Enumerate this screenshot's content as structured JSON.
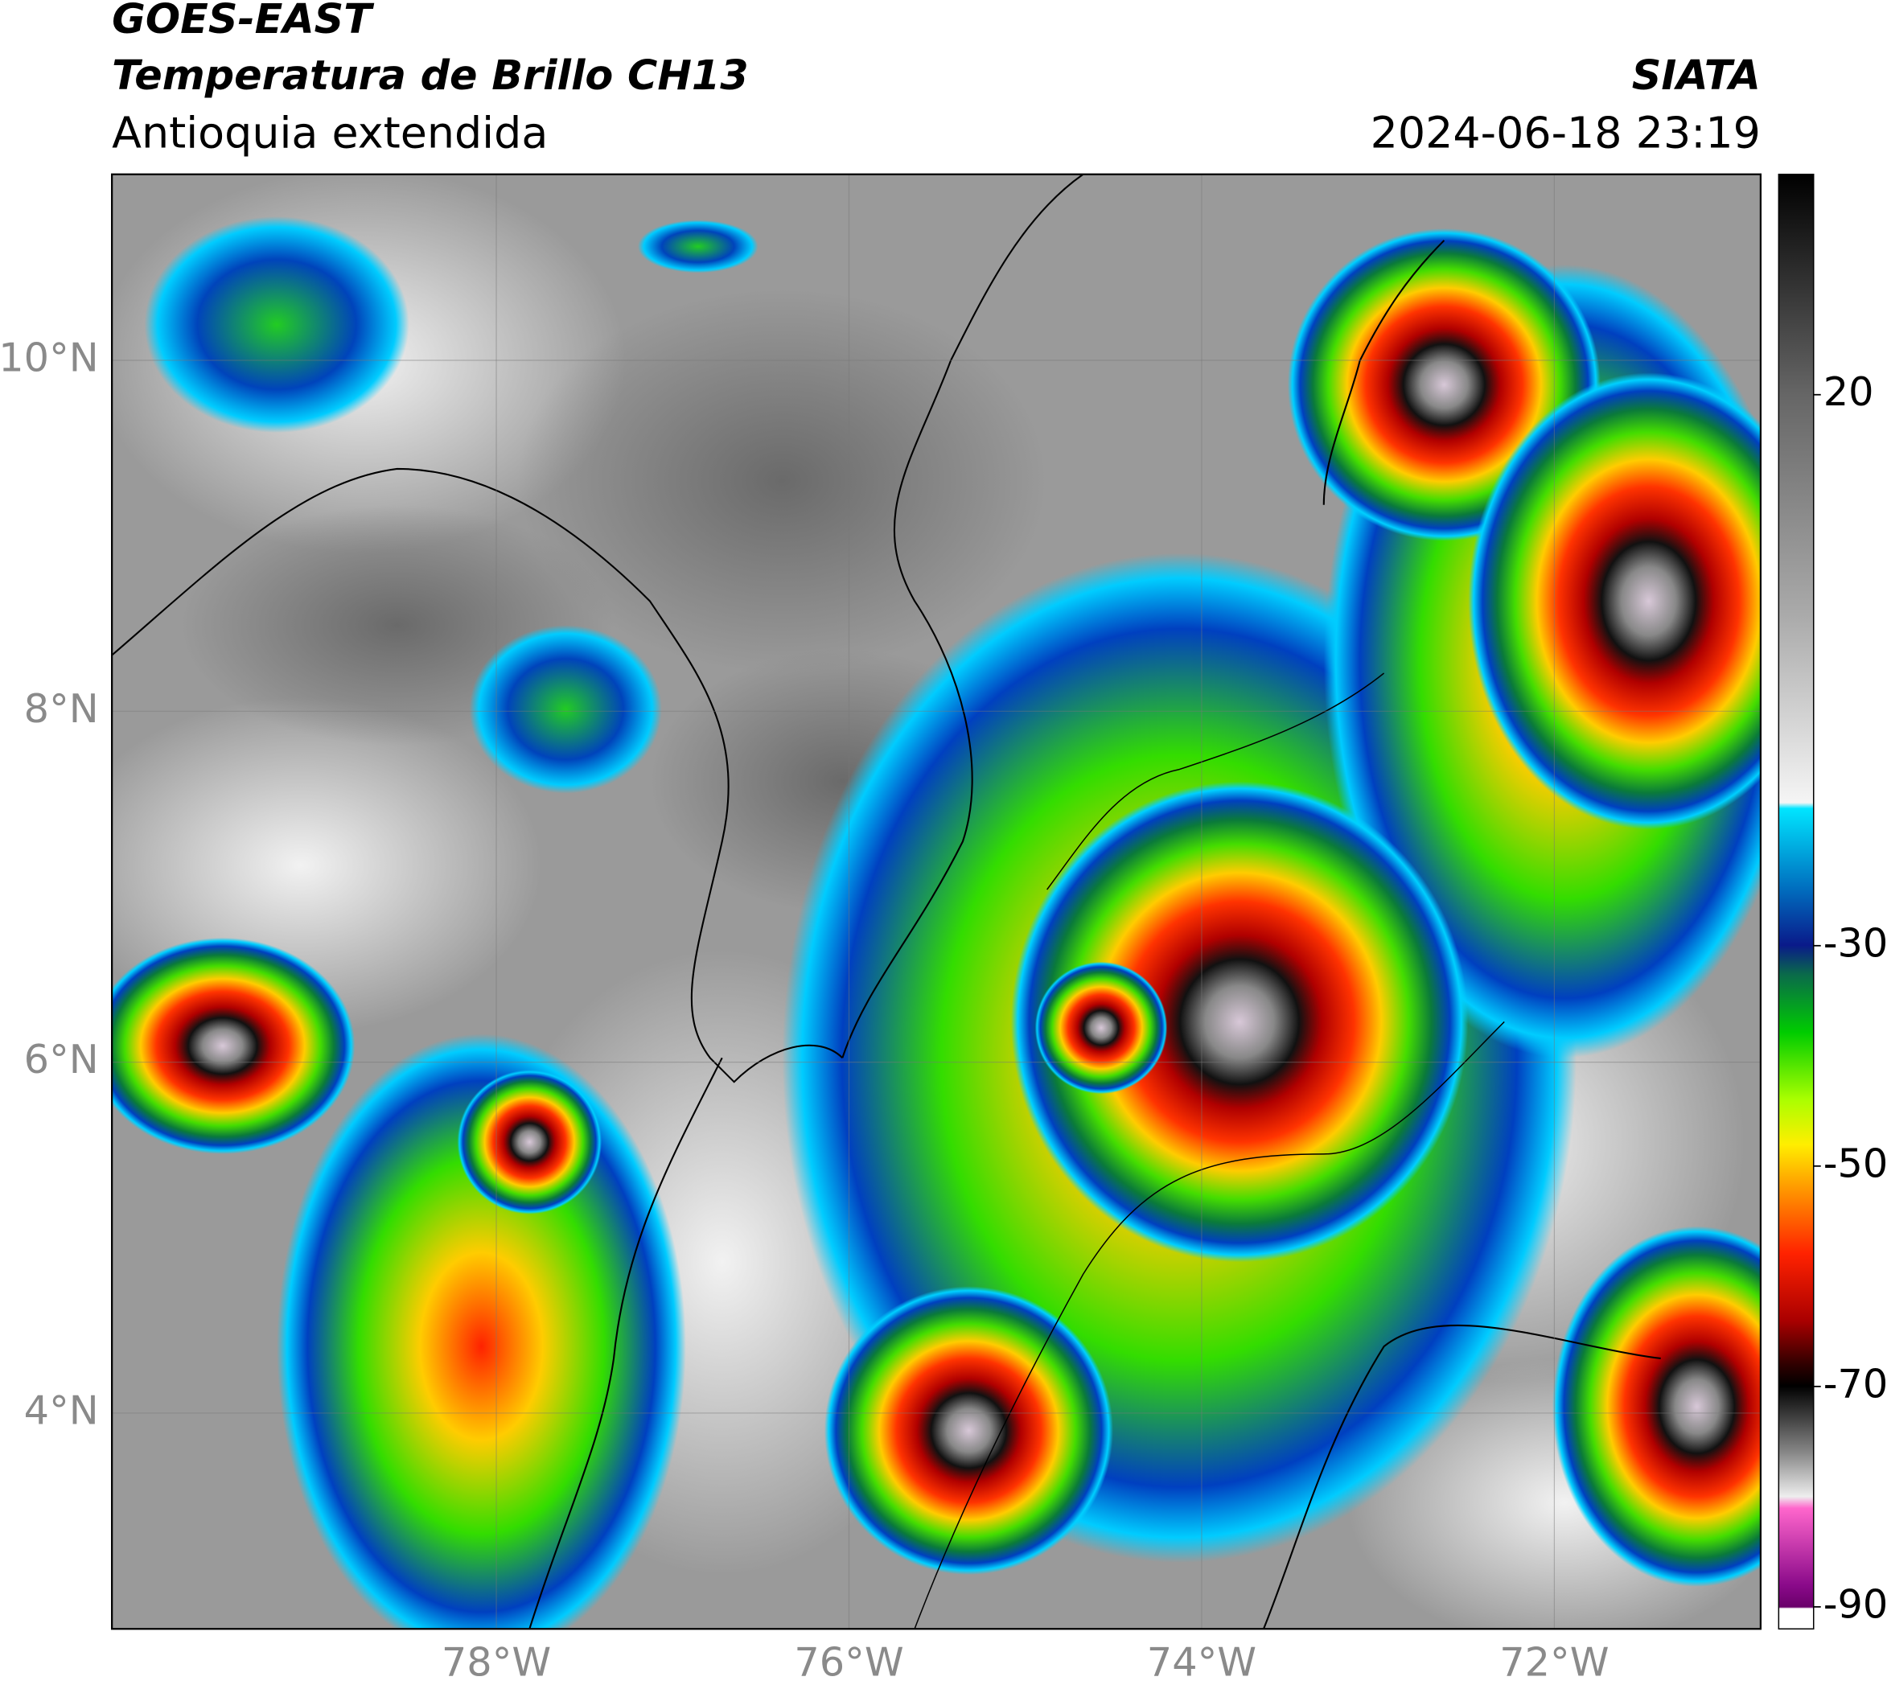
{
  "header": {
    "satellite": "GOES-EAST",
    "product": "Temperatura de Brillo CH13",
    "region": "Antioquia extendida",
    "agency": "SIATA",
    "datetime": "2024-06-18 23:19"
  },
  "map": {
    "lonlim": [
      -80.18,
      -70.83
    ],
    "latlim": [
      2.77,
      11.06
    ],
    "xticks": [
      {
        "value": -78,
        "label": "78°W"
      },
      {
        "value": -76,
        "label": "76°W"
      },
      {
        "value": -74,
        "label": "74°W"
      },
      {
        "value": -72,
        "label": "72°W"
      }
    ],
    "yticks": [
      {
        "value": 10,
        "label": "10°N"
      },
      {
        "value": 8,
        "label": "8°N"
      },
      {
        "value": 6,
        "label": "6°N"
      },
      {
        "value": 4,
        "label": "4°N"
      }
    ],
    "grid": true
  },
  "colorbar": {
    "lim": [
      -92,
      40
    ],
    "ticks": [
      20,
      -30,
      -50,
      -70,
      -90
    ]
  }
}
